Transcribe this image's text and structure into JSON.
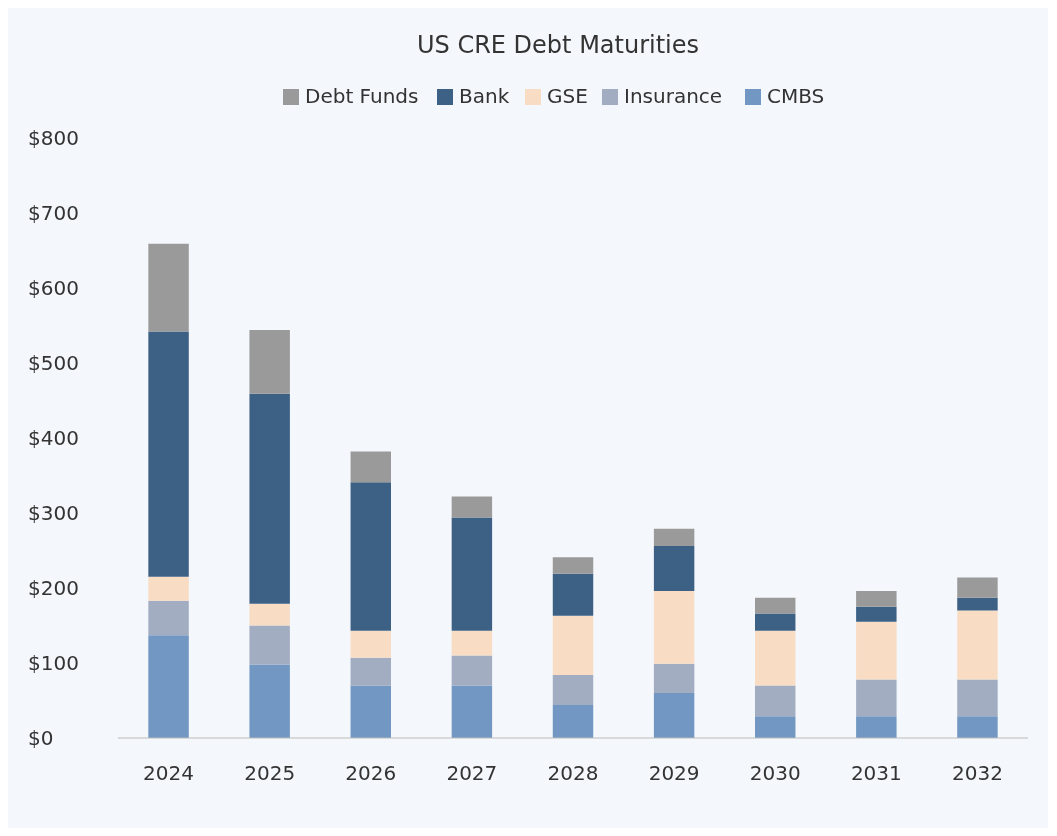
{
  "chart_data": {
    "type": "bar",
    "title": "US CRE Debt Maturities",
    "stacked": true,
    "legend": "top",
    "grid": false,
    "categories": [
      "2024",
      "2025",
      "2026",
      "2027",
      "2028",
      "2029",
      "2030",
      "2031",
      "2032"
    ],
    "ylim": [
      0,
      800
    ],
    "yticks": [
      {
        "value": 0,
        "label": "$0"
      },
      {
        "value": 100,
        "label": "$100"
      },
      {
        "value": 200,
        "label": "$200"
      },
      {
        "value": 300,
        "label": "$300"
      },
      {
        "value": 400,
        "label": "$400"
      },
      {
        "value": 500,
        "label": "$500"
      },
      {
        "value": 600,
        "label": "$600"
      },
      {
        "value": 700,
        "label": "$700"
      },
      {
        "value": 800,
        "label": "$800"
      }
    ],
    "series": [
      {
        "name": "CMBS",
        "color": "#7197c2",
        "values": [
          137,
          98,
          70,
          70,
          44,
          60,
          29,
          29,
          29
        ]
      },
      {
        "name": "Insurance",
        "color": "#a2adc1",
        "values": [
          46,
          52,
          37,
          40,
          40,
          39,
          41,
          49,
          49
        ]
      },
      {
        "name": "GSE",
        "color": "#f8dcc3",
        "values": [
          32,
          29,
          36,
          33,
          79,
          97,
          73,
          77,
          92
        ]
      },
      {
        "name": "Bank",
        "color": "#3d6185",
        "values": [
          327,
          280,
          198,
          151,
          56,
          60,
          23,
          20,
          17
        ]
      },
      {
        "name": "Debt Funds",
        "color": "#9a9a9a",
        "values": [
          117,
          85,
          41,
          28,
          22,
          23,
          21,
          21,
          27
        ]
      }
    ]
  }
}
